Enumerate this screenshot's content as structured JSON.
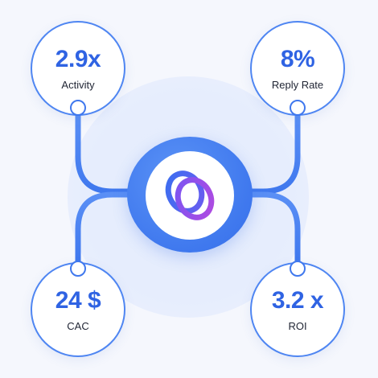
{
  "metrics": {
    "top_left": {
      "value": "2.9x",
      "label": "Activity"
    },
    "top_right": {
      "value": "8%",
      "label": "Reply Rate"
    },
    "bottom_left": {
      "value": "24 $",
      "label": "CAC"
    },
    "bottom_right": {
      "value": "3.2 x",
      "label": "ROI"
    }
  },
  "hub": {
    "icon": "interlocking-rings-logo-icon"
  },
  "colors": {
    "accent": "#3f78ee",
    "value_text": "#2f63e3",
    "label_text": "#1f2433",
    "background": "#f5f7fd",
    "halo": "#e6edfd"
  }
}
